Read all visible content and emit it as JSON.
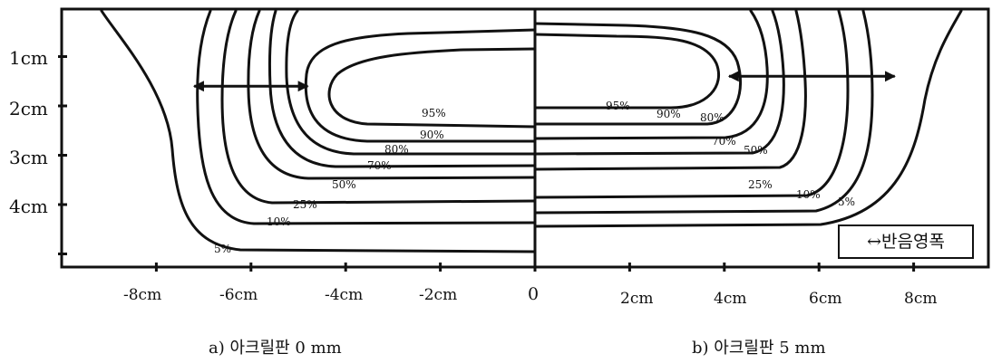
{
  "chart_data": {
    "type": "contour",
    "units": "cm",
    "y_axis": {
      "tick_labels": [
        "1cm",
        "2cm",
        "3cm",
        "4cm"
      ]
    },
    "x_axis": {
      "tick_labels": [
        "-8cm",
        "-6cm",
        "-4cm",
        "-2cm",
        "0",
        "2cm",
        "4cm",
        "6cm",
        "8cm"
      ],
      "ticks": [
        -8,
        -6,
        -4,
        -2,
        0,
        2,
        4,
        6,
        8
      ]
    },
    "panels": [
      {
        "caption": "a) 아크릴판 0 mm",
        "x_range": [
          -9.8,
          0
        ],
        "isolines": [
          "95%",
          "90%",
          "80%",
          "70%",
          "50%",
          "25%",
          "10%",
          "5%"
        ],
        "width_arrow": {
          "from_x": -7.2,
          "to_x": -4.8,
          "depth_cm": 1.6
        }
      },
      {
        "caption": "b) 아크릴판 5 mm",
        "x_range": [
          0,
          9.8
        ],
        "isolines": [
          "95%",
          "90%",
          "80%",
          "70%",
          "50%",
          "25%",
          "10%",
          "5%"
        ],
        "width_arrow": {
          "from_x": 4.1,
          "to_x": 7.6,
          "depth_cm": 1.4
        }
      }
    ],
    "legend": {
      "label": "↔반음영폭",
      "placement": "bottom-right"
    },
    "grid": false
  }
}
